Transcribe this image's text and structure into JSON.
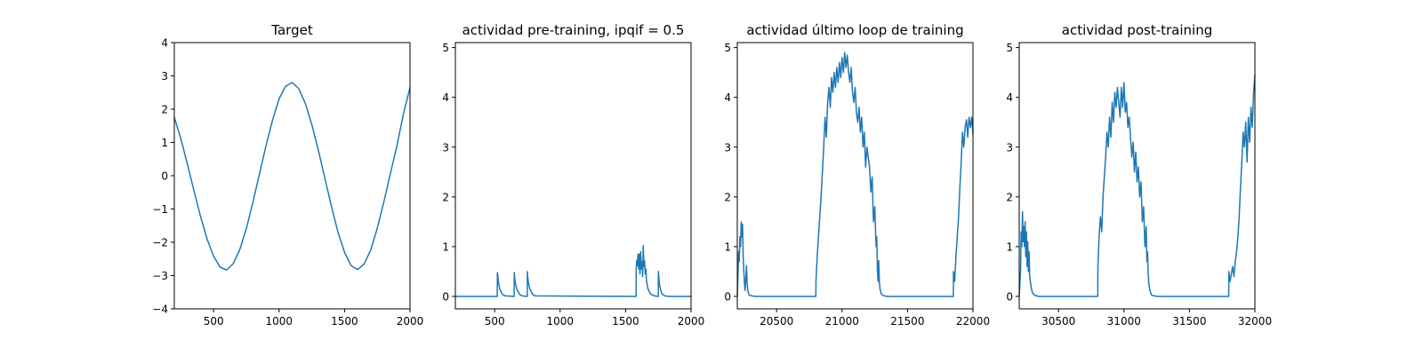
{
  "chart_data": [
    {
      "type": "line",
      "title": "Target",
      "xlabel": "",
      "ylabel": "",
      "xlim": [
        200,
        2000
      ],
      "ylim": [
        -4,
        4
      ],
      "xticks": [
        500,
        1000,
        1500,
        2000
      ],
      "yticks": [
        -4,
        -3,
        -2,
        -1,
        0,
        1,
        2,
        3,
        4
      ],
      "grid": false,
      "color": "#1f77b4",
      "series": [
        {
          "x": [
            200,
            250,
            300,
            350,
            400,
            450,
            500,
            550,
            600,
            650,
            700,
            750,
            800,
            850,
            900,
            950,
            1000,
            1050,
            1100,
            1150,
            1200,
            1250,
            1300,
            1350,
            1400,
            1450,
            1500,
            1550,
            1600,
            1650,
            1700,
            1750,
            1800,
            1850,
            1900,
            1950,
            2000
          ],
          "y": [
            1.75,
            1.11,
            0.35,
            -0.45,
            -1.22,
            -1.9,
            -2.42,
            -2.75,
            -2.83,
            -2.64,
            -2.22,
            -1.59,
            -0.8,
            0.05,
            0.9,
            1.67,
            2.31,
            2.69,
            2.8,
            2.62,
            2.18,
            1.54,
            0.77,
            -0.08,
            -0.92,
            -1.7,
            -2.3,
            -2.7,
            -2.82,
            -2.65,
            -2.23,
            -1.58,
            -0.79,
            0.06,
            0.9,
            1.86,
            2.65
          ]
        }
      ]
    },
    {
      "type": "line",
      "title": "actividad pre-training, ipqif = 0.5",
      "xlabel": "",
      "ylabel": "",
      "xlim": [
        200,
        2000
      ],
      "ylim": [
        -0.25,
        5.1
      ],
      "xticks": [
        500,
        1000,
        1500,
        2000
      ],
      "yticks": [
        0,
        1,
        2,
        3,
        4,
        5
      ],
      "grid": false,
      "color": "#1f77b4",
      "series": [
        {
          "x": [
            200,
            520,
            521,
            525,
            530,
            540,
            560,
            580,
            649,
            650,
            652,
            658,
            670,
            690,
            710,
            749,
            750,
            752,
            758,
            770,
            790,
            810,
            1580,
            1581,
            1585,
            1590,
            1595,
            1600,
            1605,
            1610,
            1615,
            1620,
            1625,
            1630,
            1635,
            1640,
            1645,
            1650,
            1655,
            1660,
            1670,
            1690,
            1720,
            1750,
            1751,
            1755,
            1760,
            1775,
            1800,
            1830,
            2000
          ],
          "y": [
            0,
            0,
            0.48,
            0.4,
            0.27,
            0.14,
            0.04,
            0.01,
            0,
            0.48,
            0.4,
            0.27,
            0.14,
            0.04,
            0.01,
            0,
            0.5,
            0.4,
            0.27,
            0.14,
            0.04,
            0.01,
            0,
            0.55,
            0.72,
            0.62,
            0.85,
            0.55,
            0.85,
            0.45,
            0.9,
            0.55,
            0.7,
            0.4,
            1.02,
            0.6,
            0.72,
            0.45,
            0.55,
            0.32,
            0.16,
            0.05,
            0.01,
            0,
            0.5,
            0.35,
            0.22,
            0.06,
            0.01,
            0,
            0
          ]
        }
      ]
    },
    {
      "type": "line",
      "title": "actividad último loop de training",
      "xlabel": "",
      "ylabel": "",
      "xlim": [
        20200,
        22000
      ],
      "ylim": [
        -0.25,
        5.1
      ],
      "xticks": [
        20500,
        21000,
        21500,
        22000
      ],
      "yticks": [
        0,
        1,
        2,
        3,
        4,
        5
      ],
      "grid": false,
      "color": "#1f77b4",
      "series": [
        {
          "x": [
            20200,
            20205,
            20210,
            20215,
            20220,
            20225,
            20230,
            20235,
            20240,
            20245,
            20250,
            20255,
            20260,
            20270,
            20275,
            20280,
            20290,
            20310,
            20340,
            20800,
            20801,
            20810,
            20820,
            20830,
            20840,
            20850,
            20860,
            20870,
            20880,
            20890,
            20900,
            20910,
            20920,
            20930,
            20940,
            20950,
            20960,
            20970,
            20980,
            20990,
            21000,
            21010,
            21020,
            21030,
            21040,
            21050,
            21060,
            21070,
            21080,
            21090,
            21100,
            21110,
            21120,
            21130,
            21140,
            21150,
            21160,
            21170,
            21180,
            21190,
            21200,
            21210,
            21220,
            21230,
            21240,
            21250,
            21260,
            21265,
            21270,
            21275,
            21280,
            21285,
            21290,
            21300,
            21320,
            21350,
            21400,
            21850,
            21851,
            21860,
            21870,
            21880,
            21890,
            21900,
            21910,
            21920,
            21930,
            21940,
            21950,
            21960,
            21970,
            21980,
            21990,
            22000
          ],
          "y": [
            0,
            0.4,
            0.9,
            0.7,
            1.2,
            1.0,
            1.5,
            1.2,
            1.45,
            0.8,
            0.5,
            0.25,
            0.12,
            0.62,
            0.3,
            0.12,
            0.03,
            0.01,
            0,
            0,
            0.3,
            0.8,
            1.2,
            1.6,
            2.0,
            2.5,
            3.0,
            3.6,
            3.2,
            3.9,
            4.2,
            3.8,
            4.4,
            4.1,
            4.5,
            4.2,
            4.6,
            4.3,
            4.7,
            4.4,
            4.8,
            4.5,
            4.9,
            4.6,
            4.85,
            4.5,
            4.3,
            4.6,
            4.1,
            3.9,
            4.2,
            3.7,
            3.5,
            3.8,
            3.3,
            3.6,
            3.0,
            3.3,
            2.6,
            3.0,
            2.8,
            2.6,
            2.1,
            2.4,
            1.5,
            1.8,
            1.0,
            1.2,
            0.55,
            0.3,
            0.72,
            0.3,
            0.15,
            0.05,
            0.01,
            0,
            0,
            0,
            0.5,
            0.3,
            0.8,
            1.2,
            1.6,
            2.2,
            2.7,
            3.3,
            3.0,
            3.4,
            3.55,
            3.2,
            3.6,
            3.4,
            3.6,
            3.25
          ]
        }
      ]
    },
    {
      "type": "line",
      "title": "actividad post-training",
      "xlabel": "",
      "ylabel": "",
      "xlim": [
        30200,
        32000
      ],
      "ylim": [
        -0.25,
        5.1
      ],
      "xticks": [
        30500,
        31000,
        31500,
        32000
      ],
      "yticks": [
        0,
        1,
        2,
        3,
        4,
        5
      ],
      "grid": false,
      "color": "#1f77b4",
      "series": [
        {
          "x": [
            30200,
            30210,
            30215,
            30220,
            30225,
            30230,
            30235,
            30240,
            30245,
            30250,
            30255,
            30260,
            30265,
            30270,
            30275,
            30280,
            30290,
            30300,
            30320,
            30350,
            30800,
            30801,
            30810,
            30820,
            30830,
            30840,
            30850,
            30860,
            30870,
            30880,
            30890,
            30900,
            30910,
            30920,
            30930,
            30940,
            30950,
            30960,
            30970,
            30980,
            30990,
            31000,
            31010,
            31020,
            31030,
            31040,
            31050,
            31060,
            31070,
            31080,
            31090,
            31100,
            31110,
            31120,
            31130,
            31140,
            31150,
            31160,
            31170,
            31175,
            31180,
            31185,
            31190,
            31200,
            31210,
            31230,
            31260,
            31300,
            31800,
            31801,
            31810,
            31820,
            31830,
            31840,
            31850,
            31860,
            31870,
            31880,
            31890,
            31900,
            31910,
            31920,
            31930,
            31940,
            31950,
            31960,
            31970,
            31980,
            31990,
            32000
          ],
          "y": [
            0,
            0.5,
            1.3,
            1.0,
            1.7,
            1.1,
            1.4,
            1.0,
            1.5,
            0.8,
            1.3,
            0.6,
            1.1,
            0.5,
            0.9,
            0.4,
            0.2,
            0.08,
            0.02,
            0,
            0,
            0.6,
            1.2,
            1.6,
            1.3,
            2.0,
            2.4,
            2.8,
            3.3,
            3.0,
            3.6,
            3.2,
            3.9,
            3.5,
            4.1,
            3.8,
            4.2,
            3.9,
            3.6,
            4.2,
            3.8,
            4.3,
            3.7,
            3.9,
            3.4,
            3.6,
            3.2,
            2.8,
            3.1,
            2.5,
            2.9,
            2.3,
            2.6,
            2.0,
            2.3,
            1.5,
            1.8,
            1.0,
            1.4,
            0.7,
            0.9,
            0.45,
            0.25,
            0.1,
            0.03,
            0.01,
            0,
            0,
            0,
            0.5,
            0.3,
            0.45,
            0.6,
            0.4,
            0.7,
            0.9,
            1.2,
            1.6,
            2.2,
            2.7,
            3.3,
            3.0,
            3.5,
            2.7,
            3.6,
            3.1,
            3.8,
            3.4,
            4.1,
            4.45
          ]
        }
      ]
    }
  ]
}
